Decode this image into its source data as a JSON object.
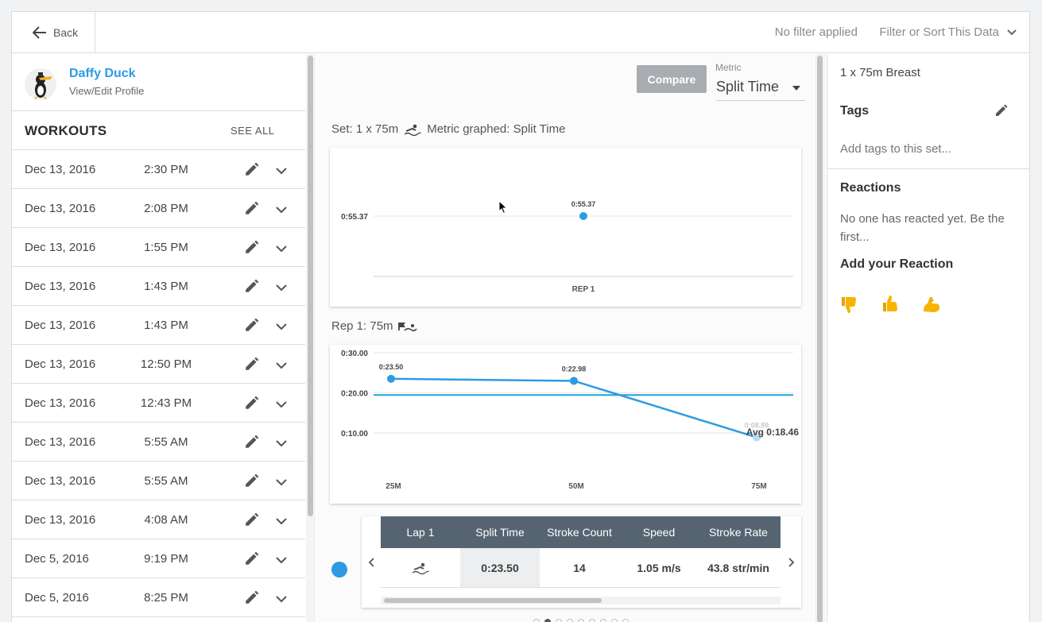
{
  "topbar": {
    "back_label": "Back",
    "filter_status": "No filter applied",
    "filter_button": "Filter or Sort This Data"
  },
  "profile": {
    "name": "Daffy Duck",
    "edit_label": "View/Edit Profile"
  },
  "workouts": {
    "title": "WORKOUTS",
    "see_all": "SEE ALL",
    "rows": [
      {
        "date": "Dec 13, 2016",
        "time": "2:30 PM"
      },
      {
        "date": "Dec 13, 2016",
        "time": "2:08 PM"
      },
      {
        "date": "Dec 13, 2016",
        "time": "1:55 PM"
      },
      {
        "date": "Dec 13, 2016",
        "time": "1:43 PM"
      },
      {
        "date": "Dec 13, 2016",
        "time": "1:43 PM"
      },
      {
        "date": "Dec 13, 2016",
        "time": "12:50 PM"
      },
      {
        "date": "Dec 13, 2016",
        "time": "12:43 PM"
      },
      {
        "date": "Dec 13, 2016",
        "time": "5:55 AM"
      },
      {
        "date": "Dec 13, 2016",
        "time": "5:55 AM"
      },
      {
        "date": "Dec 13, 2016",
        "time": "4:08 AM"
      },
      {
        "date": "Dec 5, 2016",
        "time": "9:19 PM"
      },
      {
        "date": "Dec 5, 2016",
        "time": "8:25 PM"
      }
    ]
  },
  "controls": {
    "compare_label": "Compare",
    "metric_label": "Metric",
    "metric_value": "Split Time"
  },
  "set_title": "Set: 1 x 75m",
  "set_metric": "Metric graphed: Split Time",
  "rep_title": "Rep 1: 75m",
  "chart_data": [
    {
      "type": "scatter",
      "categories": [
        "REP 1"
      ],
      "values": [
        55.37
      ],
      "y_tick_labels": [
        "0:55.37"
      ],
      "data_labels": [
        "0:55.37"
      ],
      "grid": true
    },
    {
      "type": "line",
      "categories": [
        "25M",
        "50M",
        "75M"
      ],
      "values": [
        23.5,
        22.98,
        8.89
      ],
      "data_labels": [
        "0:23.50",
        "0:22.98",
        "0:08.89"
      ],
      "y_tick_labels": [
        "0:30.00",
        "0:20.00",
        "0:10.00"
      ],
      "y_ticks": [
        30,
        20,
        10
      ],
      "ylim": [
        0,
        30
      ],
      "average": {
        "value": 18.46,
        "label": "Avg 0:18.46"
      },
      "grid": true,
      "colors": {
        "line": "#2d9be3",
        "average": "#1aa3d9"
      }
    }
  ],
  "lap_table": {
    "headers": [
      "Lap 1",
      "Split Time",
      "Stroke Count",
      "Speed",
      "Stroke Rate"
    ],
    "row": {
      "icon": "swimmer-icon",
      "split": "0:23.50",
      "stroke_count": "14",
      "speed": "1.05 m/s",
      "stroke_rate": "43.8 str/min"
    }
  },
  "right": {
    "set_name": "1 x 75m Breast",
    "tags_title": "Tags",
    "tags_placeholder": "Add tags to this set...",
    "reactions_title": "Reactions",
    "reactions_empty": "No one has reacted yet. Be the first...",
    "add_reaction_title": "Add your Reaction",
    "reactions": [
      "thumbs-down-icon",
      "thumbs-up-icon",
      "flexed-biceps-icon"
    ]
  },
  "colors": {
    "accent": "#2d9be3",
    "table_header": "#566472",
    "compare_bg": "#a8adb2"
  }
}
